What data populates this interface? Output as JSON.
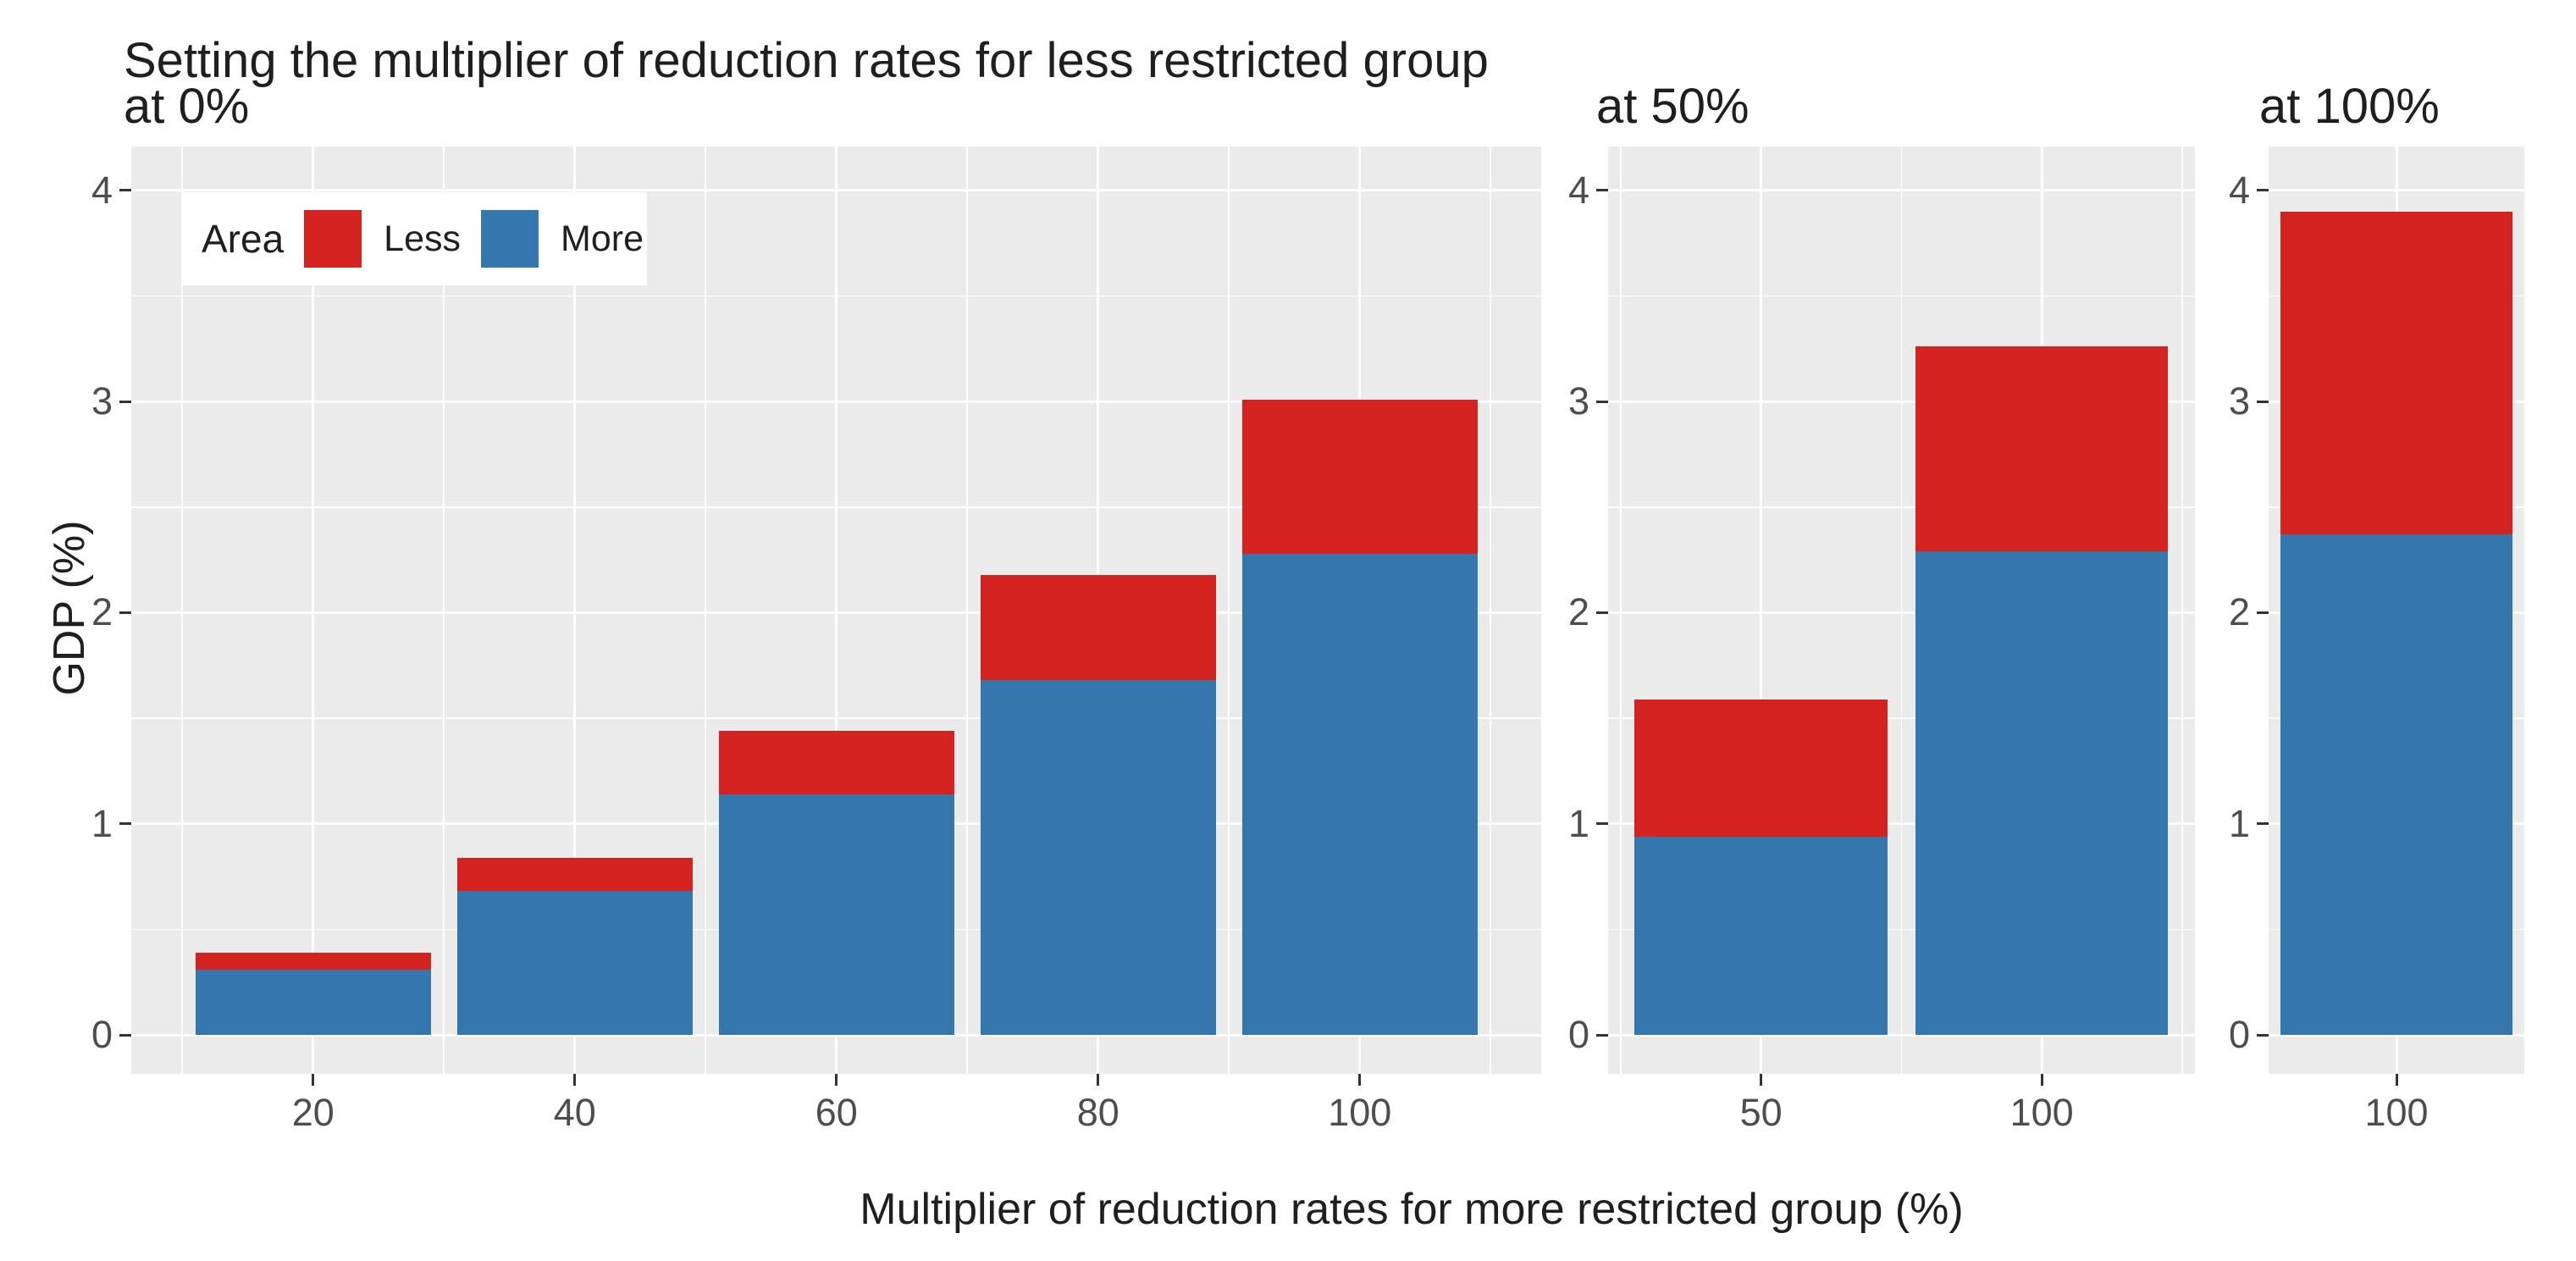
{
  "chart_data": {
    "type": "bar",
    "stacked": true,
    "title": "Setting the multiplier of reduction rates for less restricted group",
    "xlabel": "Multiplier of reduction rates for more restricted group (%)",
    "ylabel": "GDP (%)",
    "ylim": [
      0,
      4
    ],
    "y_major_ticks": [
      0,
      1,
      2,
      3,
      4
    ],
    "grid": "white major and minor gridlines on gray panel",
    "legend": {
      "title": "Area",
      "position": "top-left inside first panel",
      "entries": [
        {
          "label": "Less",
          "color": "#d42220"
        },
        {
          "label": "More",
          "color": "#3377ad"
        }
      ]
    },
    "stack_order_bottom_to_top": [
      "More",
      "Less"
    ],
    "panels": [
      {
        "facet_label": "at 0%",
        "x_ticks": [
          20,
          40,
          60,
          80,
          100
        ],
        "bars": [
          {
            "x": 20,
            "more": 0.31,
            "less": 0.08
          },
          {
            "x": 40,
            "more": 0.68,
            "less": 0.16
          },
          {
            "x": 60,
            "more": 1.14,
            "less": 0.3
          },
          {
            "x": 80,
            "more": 1.68,
            "less": 0.5
          },
          {
            "x": 100,
            "more": 2.28,
            "less": 0.73
          }
        ]
      },
      {
        "facet_label": "at 50%",
        "x_ticks": [
          50,
          100
        ],
        "bars": [
          {
            "x": 50,
            "more": 0.94,
            "less": 0.65
          },
          {
            "x": 100,
            "more": 2.29,
            "less": 0.97
          }
        ]
      },
      {
        "facet_label": "at 100%",
        "x_ticks": [
          100
        ],
        "bars": [
          {
            "x": 100,
            "more": 2.37,
            "less": 1.53
          }
        ]
      }
    ]
  }
}
